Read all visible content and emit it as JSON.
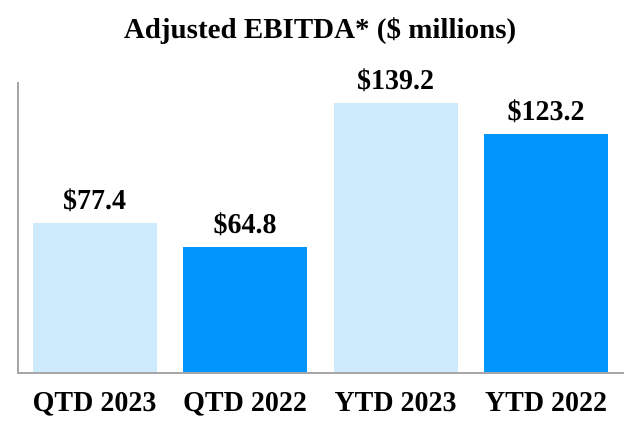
{
  "chart_data": {
    "type": "bar",
    "title": "Adjusted EBITDA* ($ millions)",
    "categories": [
      "QTD 2023",
      "QTD 2022",
      "YTD 2023",
      "YTD 2022"
    ],
    "values": [
      77.4,
      64.8,
      139.2,
      123.2
    ],
    "data_labels": [
      "$77.4",
      "$64.8",
      "$139.2",
      "$123.2"
    ],
    "bar_colors": [
      "#CDEBFC",
      "#0096FD",
      "#CDEBFC",
      "#0096FD"
    ],
    "axis_color": "#A6A6A6",
    "title_color": "#000000",
    "label_color": "#000000",
    "ylim": [
      0,
      150
    ],
    "grid": false,
    "legend": false,
    "y_tick_labels_shown": false
  }
}
